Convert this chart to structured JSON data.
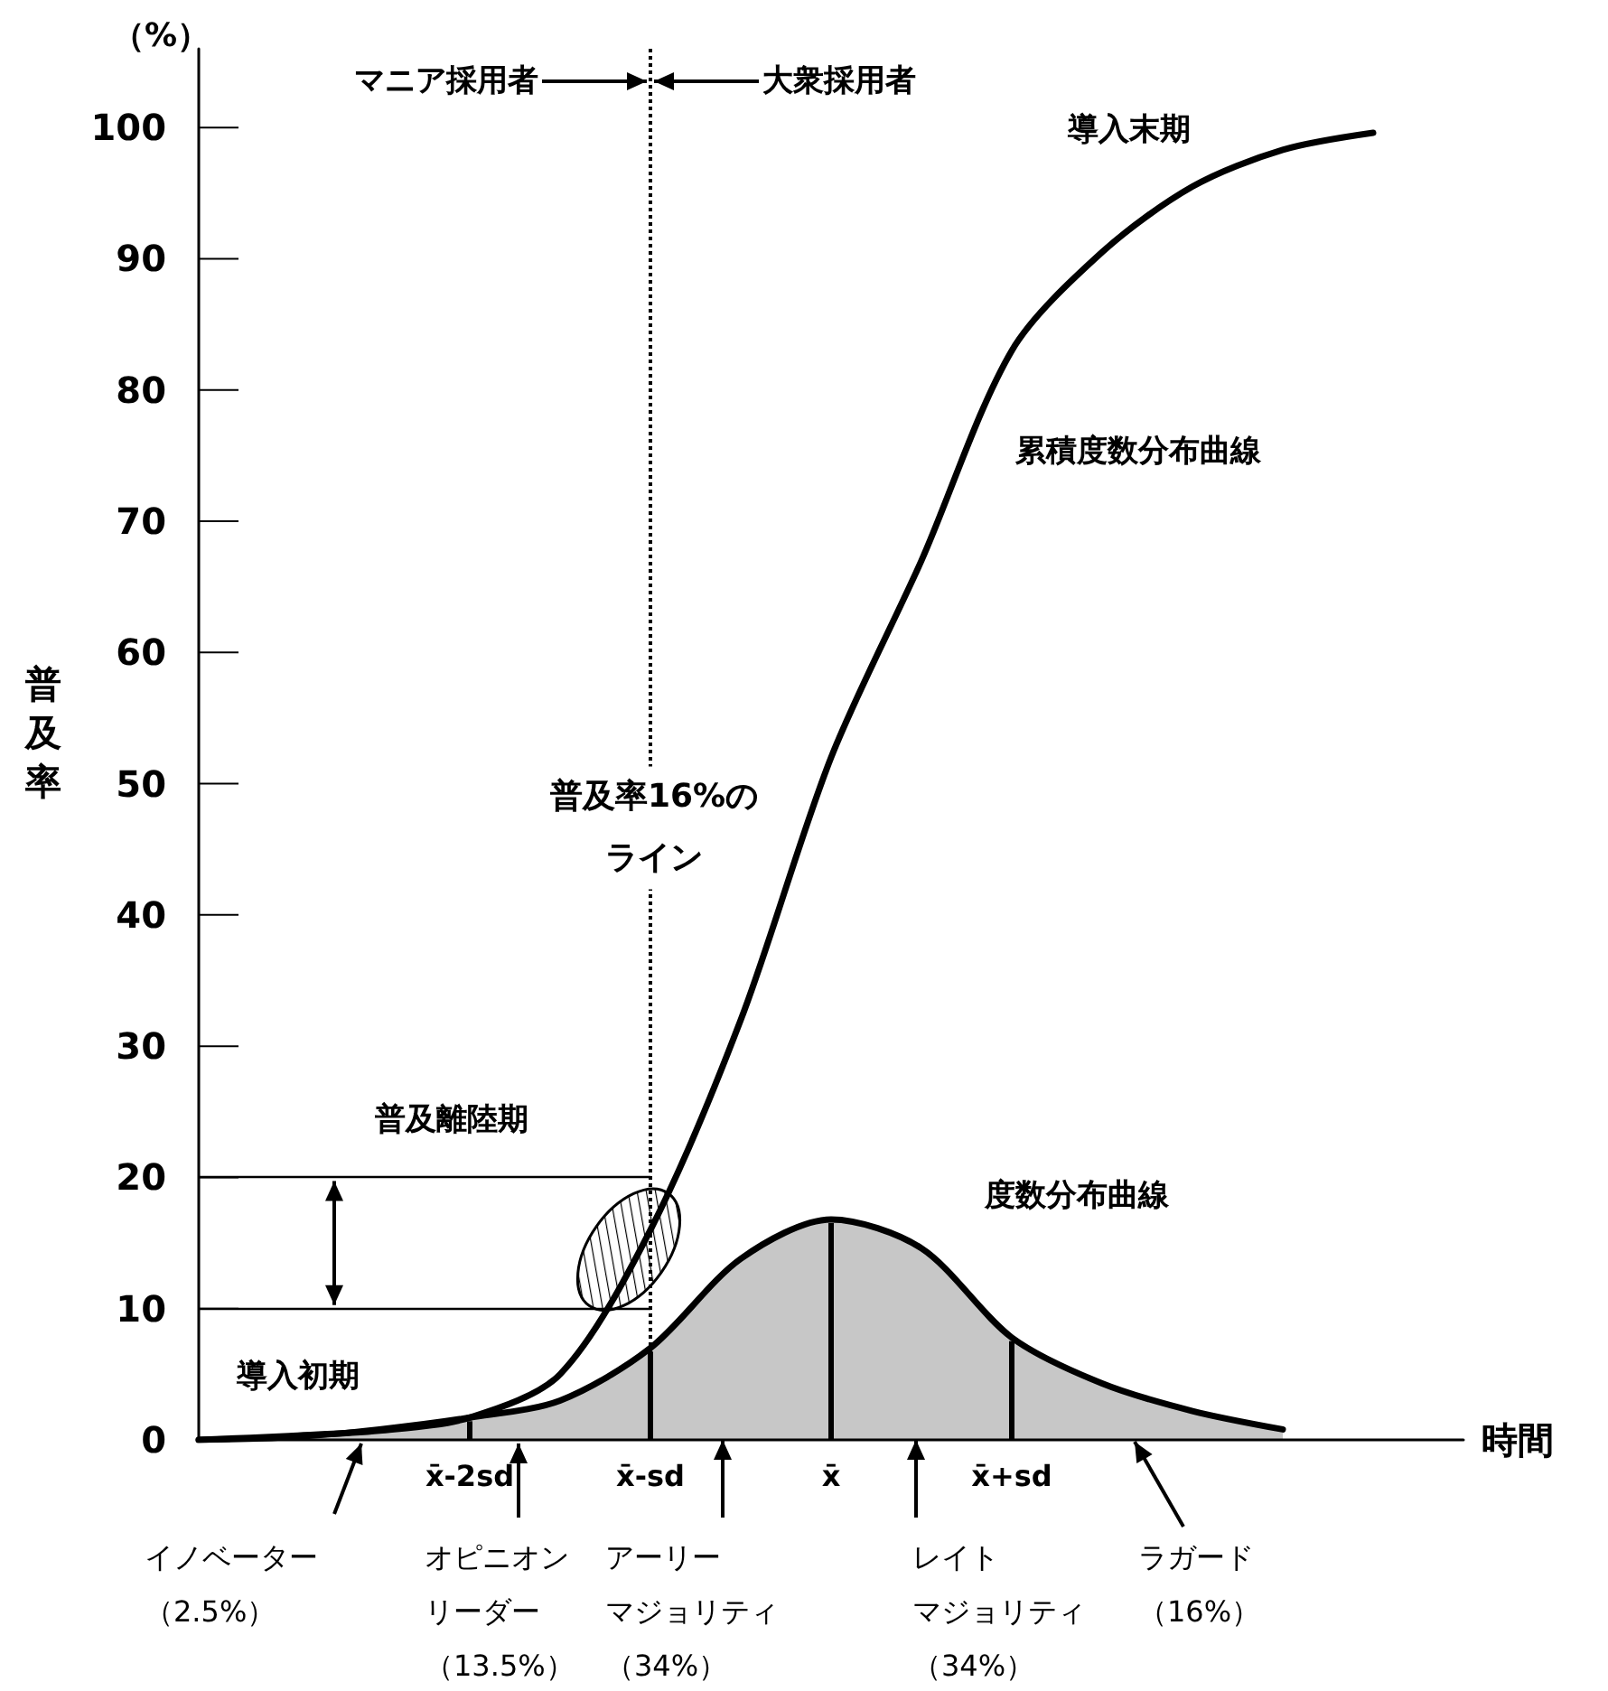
{
  "chart_data": {
    "type": "line",
    "xlabel": "時間",
    "ylabel": "普及率",
    "categories": [
      null,
      null,
      null,
      "x̄-2sd",
      null,
      "x̄-sd",
      null,
      "x̄",
      null,
      "x̄+sd",
      null,
      null,
      null,
      null,
      null
    ],
    "ylim": [
      0,
      106
    ],
    "yticks": [
      0,
      10,
      20,
      30,
      40,
      50,
      60,
      70,
      80,
      90,
      100
    ],
    "series": [
      {
        "type": "line",
        "name": "累積度数分布曲線",
        "color": "#000000",
        "values": [
          0,
          0.3,
          0.7,
          1.7,
          5,
          16,
          32,
          52,
          67,
          83,
          90.5,
          95.5,
          98.3,
          99.6,
          null
        ]
      },
      {
        "type": "area",
        "name": "度数分布曲線",
        "color": "#000000",
        "values": [
          0,
          0.2,
          0.8,
          1.7,
          3,
          7,
          13.8,
          16.8,
          14.6,
          7.8,
          4.3,
          2.2,
          0.8,
          null,
          null
        ]
      }
    ],
    "ref_lines": [
      {
        "axis": "x",
        "value": "x̄-sd",
        "label": "普及率16%のライン",
        "line_style": "dotted"
      },
      {
        "axis": "y",
        "value": 20
      },
      {
        "axis": "y",
        "value": 10
      }
    ],
    "annotations": [
      "（%）",
      "マニア採用者",
      "大衆採用者",
      "導入末期",
      "導入初期",
      "普及離陸期",
      "イノベーター",
      "（2.5%）",
      "オピニオン",
      "リーダー",
      "（13.5%）",
      "アーリー",
      "マジョリティ",
      "（34%）",
      "レイト",
      "マジョリティ",
      "（34%）",
      "ラガード",
      "（16%）"
    ],
    "grid": false,
    "legend": false,
    "marker": "none",
    "line_style": "solid"
  }
}
